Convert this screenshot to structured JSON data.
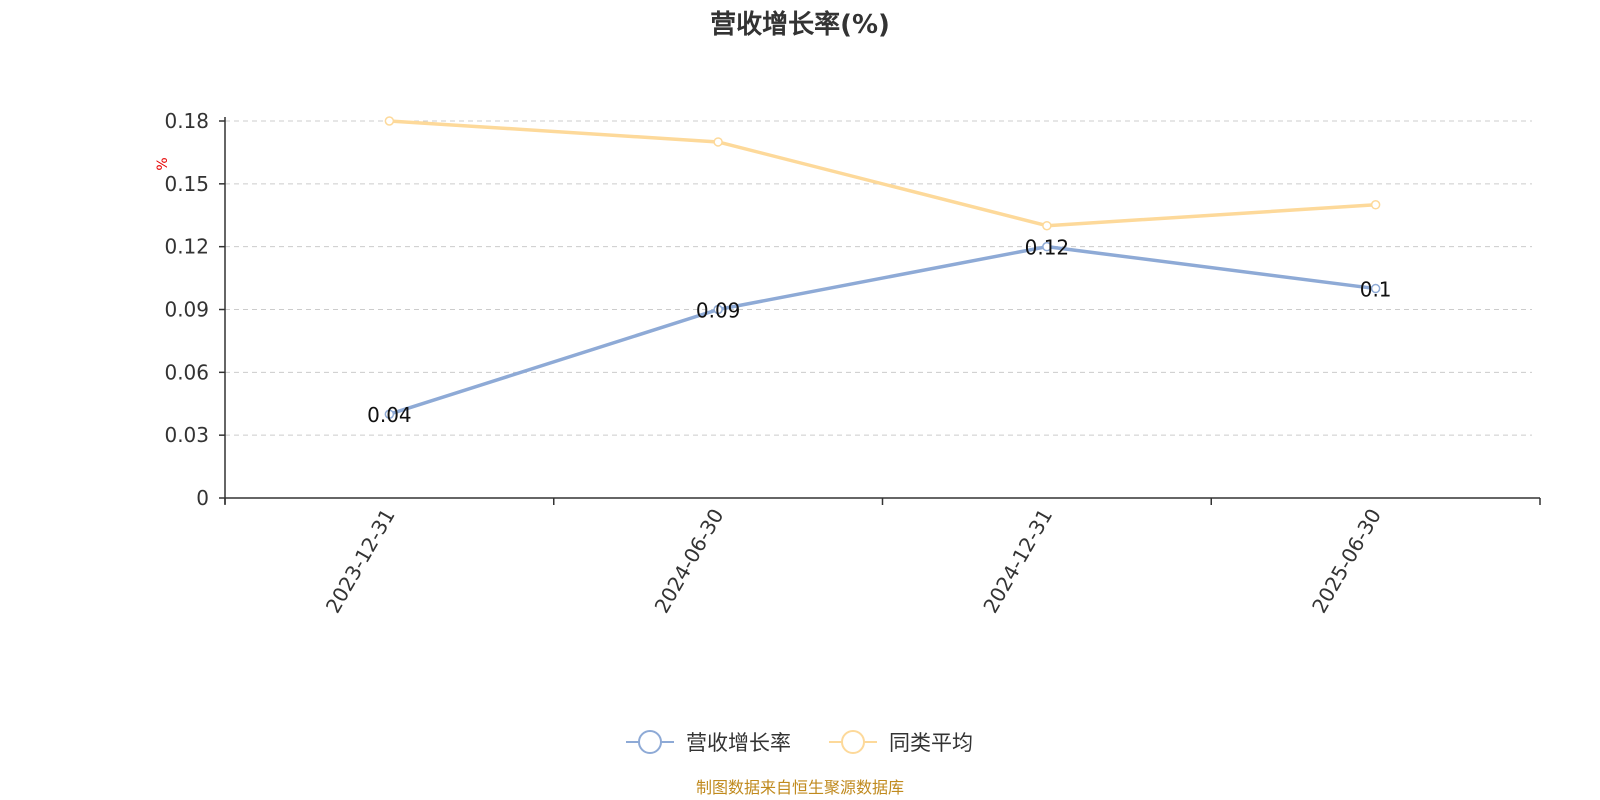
{
  "chart_data": {
    "type": "line",
    "title": "营收增长率(%)",
    "ylabel": "%",
    "categories": [
      "2023-12-31",
      "2024-06-30",
      "2024-12-31",
      "2025-06-30"
    ],
    "ylim": [
      0,
      0.18
    ],
    "yticks": [
      "0",
      "0.03",
      "0.06",
      "0.09",
      "0.12",
      "0.15",
      "0.18"
    ],
    "grid": true,
    "legend_position": "bottom-center",
    "series": [
      {
        "name": "营收增长率",
        "color": "#8eaad6",
        "values": [
          0.04,
          0.09,
          0.12,
          0.1
        ],
        "labels": [
          "0.04",
          "0.09",
          "0.12",
          "0.1"
        ]
      },
      {
        "name": "同类平均",
        "color": "#fdd99a",
        "values": [
          0.18,
          0.17,
          0.13,
          0.14
        ]
      }
    ]
  },
  "source_note": "制图数据来自恒生聚源数据库"
}
